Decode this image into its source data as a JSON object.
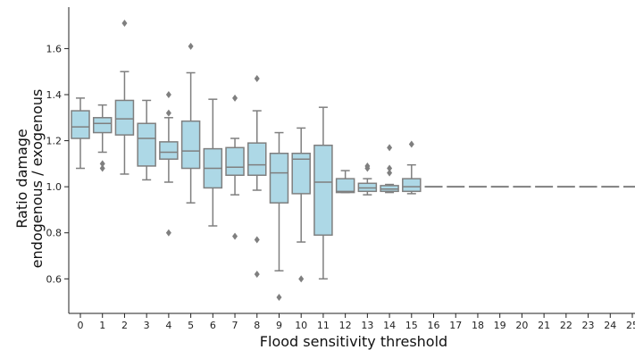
{
  "chart_data": {
    "type": "box",
    "xlabel": "Flood sensitivity threshold",
    "ylabel_lines": [
      "Ratio damage",
      "endogenous / exogenous"
    ],
    "ylim": [
      0.45,
      1.78
    ],
    "yticks": [
      0.6,
      0.8,
      1.0,
      1.2,
      1.4,
      1.6
    ],
    "ytick_labels": [
      "0.6",
      "0.8",
      "1.0",
      "1.2",
      "1.4",
      "1.6"
    ],
    "categories": [
      "0",
      "1",
      "2",
      "3",
      "4",
      "5",
      "6",
      "7",
      "8",
      "9",
      "10",
      "11",
      "12",
      "13",
      "14",
      "15",
      "16",
      "17",
      "18",
      "19",
      "20",
      "21",
      "22",
      "23",
      "24",
      "25"
    ],
    "box_color": "#add8e6",
    "line_color": "#7f7f7f",
    "grid": false,
    "boxes": [
      {
        "x": "0",
        "whislo": 1.08,
        "q1": 1.21,
        "med": 1.26,
        "q3": 1.33,
        "whishi": 1.385,
        "fliers": []
      },
      {
        "x": "1",
        "whislo": 1.15,
        "q1": 1.235,
        "med": 1.275,
        "q3": 1.3,
        "whishi": 1.355,
        "fliers": [
          1.08,
          1.1
        ]
      },
      {
        "x": "2",
        "whislo": 1.055,
        "q1": 1.225,
        "med": 1.295,
        "q3": 1.375,
        "whishi": 1.5,
        "fliers": [
          1.71
        ]
      },
      {
        "x": "3",
        "whislo": 1.03,
        "q1": 1.09,
        "med": 1.21,
        "q3": 1.275,
        "whishi": 1.375,
        "fliers": []
      },
      {
        "x": "4",
        "whislo": 1.02,
        "q1": 1.12,
        "med": 1.15,
        "q3": 1.195,
        "whishi": 1.3,
        "fliers": [
          1.32,
          1.4,
          0.8
        ]
      },
      {
        "x": "5",
        "whislo": 0.93,
        "q1": 1.08,
        "med": 1.155,
        "q3": 1.285,
        "whishi": 1.495,
        "fliers": [
          1.61
        ]
      },
      {
        "x": "6",
        "whislo": 0.83,
        "q1": 0.995,
        "med": 1.08,
        "q3": 1.165,
        "whishi": 1.38,
        "fliers": []
      },
      {
        "x": "7",
        "whislo": 0.965,
        "q1": 1.05,
        "med": 1.085,
        "q3": 1.17,
        "whishi": 1.21,
        "fliers": [
          1.385,
          0.785
        ]
      },
      {
        "x": "8",
        "whislo": 0.985,
        "q1": 1.05,
        "med": 1.095,
        "q3": 1.19,
        "whishi": 1.33,
        "fliers": [
          1.47,
          0.77,
          0.62
        ]
      },
      {
        "x": "9",
        "whislo": 0.635,
        "q1": 0.93,
        "med": 1.06,
        "q3": 1.145,
        "whishi": 1.235,
        "fliers": [
          0.52
        ]
      },
      {
        "x": "10",
        "whislo": 0.76,
        "q1": 0.97,
        "med": 1.12,
        "q3": 1.145,
        "whishi": 1.255,
        "fliers": [
          0.6
        ]
      },
      {
        "x": "11",
        "whislo": 0.6,
        "q1": 0.79,
        "med": 1.02,
        "q3": 1.18,
        "whishi": 1.345,
        "fliers": []
      },
      {
        "x": "12",
        "whislo": 0.975,
        "q1": 0.975,
        "med": 0.98,
        "q3": 1.035,
        "whishi": 1.07,
        "fliers": []
      },
      {
        "x": "13",
        "whislo": 0.965,
        "q1": 0.98,
        "med": 0.995,
        "q3": 1.015,
        "whishi": 1.035,
        "fliers": [
          1.08,
          1.09
        ]
      },
      {
        "x": "14",
        "whislo": 0.975,
        "q1": 0.98,
        "med": 0.99,
        "q3": 1.005,
        "whishi": 1.01,
        "fliers": [
          1.06,
          1.08,
          1.17
        ]
      },
      {
        "x": "15",
        "whislo": 0.97,
        "q1": 0.98,
        "med": 1.0,
        "q3": 1.035,
        "whishi": 1.095,
        "fliers": [
          1.185
        ]
      },
      {
        "x": "16",
        "whislo": 1.0,
        "q1": 1.0,
        "med": 1.0,
        "q3": 1.0,
        "whishi": 1.0,
        "fliers": []
      },
      {
        "x": "17",
        "whislo": 1.0,
        "q1": 1.0,
        "med": 1.0,
        "q3": 1.0,
        "whishi": 1.0,
        "fliers": []
      },
      {
        "x": "18",
        "whislo": 1.0,
        "q1": 1.0,
        "med": 1.0,
        "q3": 1.0,
        "whishi": 1.0,
        "fliers": []
      },
      {
        "x": "19",
        "whislo": 1.0,
        "q1": 1.0,
        "med": 1.0,
        "q3": 1.0,
        "whishi": 1.0,
        "fliers": []
      },
      {
        "x": "20",
        "whislo": 1.0,
        "q1": 1.0,
        "med": 1.0,
        "q3": 1.0,
        "whishi": 1.0,
        "fliers": []
      },
      {
        "x": "21",
        "whislo": 1.0,
        "q1": 1.0,
        "med": 1.0,
        "q3": 1.0,
        "whishi": 1.0,
        "fliers": []
      },
      {
        "x": "22",
        "whislo": 1.0,
        "q1": 1.0,
        "med": 1.0,
        "q3": 1.0,
        "whishi": 1.0,
        "fliers": []
      },
      {
        "x": "23",
        "whislo": 1.0,
        "q1": 1.0,
        "med": 1.0,
        "q3": 1.0,
        "whishi": 1.0,
        "fliers": []
      },
      {
        "x": "24",
        "whislo": 1.0,
        "q1": 1.0,
        "med": 1.0,
        "q3": 1.0,
        "whishi": 1.0,
        "fliers": []
      },
      {
        "x": "25",
        "whislo": 1.0,
        "q1": 1.0,
        "med": 1.0,
        "q3": 1.0,
        "whishi": 1.0,
        "fliers": []
      }
    ]
  }
}
